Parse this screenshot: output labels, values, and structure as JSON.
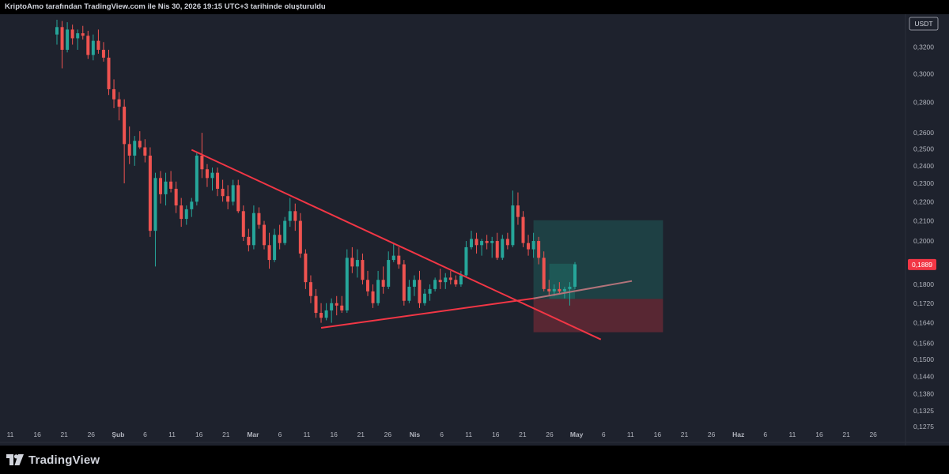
{
  "header": {
    "attribution": "KriptoAmo tarafından TradingView.com ile Nis 30, 2026 19:15 UTC+3 tarihinde oluşturuldu"
  },
  "branding": {
    "logo_text": "TradingView"
  },
  "colors": {
    "background": "#1e222d",
    "bull": "#26a69a",
    "bear": "#ef5350",
    "trendline": "#f23645",
    "current_price": "#f23645",
    "target_zone": "#22ab94",
    "stop_zone": "#f23645",
    "axis_text": "#b2b5be"
  },
  "chart_data": {
    "type": "candlestick",
    "symbol_currency": "USDT",
    "y_scale": "log",
    "ylim": [
      0.1275,
      0.344
    ],
    "y_ticks": [
      "0,3200",
      "0,3000",
      "0,2800",
      "0,2600",
      "0,2500",
      "0,2400",
      "0,2300",
      "0,2200",
      "0,2100",
      "0,2000",
      "0,1800",
      "0,1720",
      "0,1640",
      "0,1560",
      "0,1500",
      "0,1440",
      "0,1380",
      "0,1325",
      "0,1275"
    ],
    "current_price_label": "0,1889",
    "current_price": 0.1889,
    "x_ticks": [
      "11",
      "16",
      "21",
      "26",
      "Şub",
      "6",
      "11",
      "16",
      "21",
      "Mar",
      "6",
      "11",
      "16",
      "21",
      "26",
      "Nis",
      "6",
      "11",
      "16",
      "21",
      "26",
      "May",
      "6",
      "11",
      "16",
      "21",
      "26",
      "Haz",
      "6",
      "11",
      "16",
      "21",
      "26"
    ],
    "candles": [
      [
        0.33,
        0.342,
        0.322,
        0.336
      ],
      [
        0.336,
        0.341,
        0.304,
        0.318
      ],
      [
        0.318,
        0.34,
        0.316,
        0.334
      ],
      [
        0.334,
        0.338,
        0.322,
        0.327
      ],
      [
        0.327,
        0.334,
        0.318,
        0.331
      ],
      [
        0.331,
        0.337,
        0.326,
        0.329
      ],
      [
        0.329,
        0.333,
        0.311,
        0.314
      ],
      [
        0.314,
        0.33,
        0.31,
        0.325
      ],
      [
        0.325,
        0.334,
        0.315,
        0.318
      ],
      [
        0.318,
        0.324,
        0.309,
        0.312
      ],
      [
        0.312,
        0.318,
        0.285,
        0.289
      ],
      [
        0.289,
        0.296,
        0.276,
        0.282
      ],
      [
        0.282,
        0.287,
        0.268,
        0.277
      ],
      [
        0.277,
        0.282,
        0.23,
        0.253
      ],
      [
        0.253,
        0.264,
        0.241,
        0.246
      ],
      [
        0.246,
        0.258,
        0.24,
        0.255
      ],
      [
        0.255,
        0.261,
        0.25,
        0.251
      ],
      [
        0.251,
        0.256,
        0.242,
        0.246
      ],
      [
        0.246,
        0.251,
        0.202,
        0.205
      ],
      [
        0.205,
        0.236,
        0.188,
        0.233
      ],
      [
        0.233,
        0.237,
        0.219,
        0.224
      ],
      [
        0.224,
        0.236,
        0.218,
        0.231
      ],
      [
        0.231,
        0.237,
        0.225,
        0.227
      ],
      [
        0.227,
        0.231,
        0.214,
        0.218
      ],
      [
        0.218,
        0.222,
        0.207,
        0.211
      ],
      [
        0.211,
        0.218,
        0.208,
        0.216
      ],
      [
        0.216,
        0.222,
        0.212,
        0.22
      ],
      [
        0.22,
        0.248,
        0.218,
        0.246
      ],
      [
        0.246,
        0.26,
        0.233,
        0.238
      ],
      [
        0.238,
        0.241,
        0.228,
        0.233
      ],
      [
        0.233,
        0.239,
        0.226,
        0.236
      ],
      [
        0.236,
        0.239,
        0.223,
        0.227
      ],
      [
        0.227,
        0.232,
        0.22,
        0.223
      ],
      [
        0.223,
        0.229,
        0.216,
        0.22
      ],
      [
        0.22,
        0.232,
        0.218,
        0.229
      ],
      [
        0.229,
        0.232,
        0.214,
        0.215
      ],
      [
        0.215,
        0.218,
        0.2,
        0.202
      ],
      [
        0.202,
        0.206,
        0.195,
        0.198
      ],
      [
        0.198,
        0.218,
        0.196,
        0.214
      ],
      [
        0.214,
        0.217,
        0.206,
        0.208
      ],
      [
        0.208,
        0.21,
        0.196,
        0.198
      ],
      [
        0.198,
        0.204,
        0.187,
        0.191
      ],
      [
        0.191,
        0.206,
        0.19,
        0.203
      ],
      [
        0.203,
        0.208,
        0.196,
        0.199
      ],
      [
        0.199,
        0.212,
        0.198,
        0.21
      ],
      [
        0.21,
        0.222,
        0.207,
        0.215
      ],
      [
        0.215,
        0.219,
        0.205,
        0.21
      ],
      [
        0.21,
        0.214,
        0.192,
        0.194
      ],
      [
        0.194,
        0.196,
        0.178,
        0.181
      ],
      [
        0.181,
        0.184,
        0.172,
        0.175
      ],
      [
        0.175,
        0.178,
        0.166,
        0.168
      ],
      [
        0.168,
        0.172,
        0.164,
        0.166
      ],
      [
        0.166,
        0.172,
        0.165,
        0.169
      ],
      [
        0.169,
        0.174,
        0.164,
        0.172
      ],
      [
        0.172,
        0.175,
        0.167,
        0.171
      ],
      [
        0.171,
        0.175,
        0.168,
        0.169
      ],
      [
        0.169,
        0.196,
        0.168,
        0.192
      ],
      [
        0.192,
        0.197,
        0.185,
        0.188
      ],
      [
        0.188,
        0.196,
        0.183,
        0.191
      ],
      [
        0.191,
        0.194,
        0.18,
        0.182
      ],
      [
        0.182,
        0.186,
        0.175,
        0.177
      ],
      [
        0.177,
        0.18,
        0.17,
        0.172
      ],
      [
        0.172,
        0.186,
        0.171,
        0.182
      ],
      [
        0.182,
        0.188,
        0.176,
        0.179
      ],
      [
        0.179,
        0.195,
        0.178,
        0.191
      ],
      [
        0.191,
        0.199,
        0.19,
        0.193
      ],
      [
        0.193,
        0.197,
        0.187,
        0.189
      ],
      [
        0.189,
        0.191,
        0.171,
        0.173
      ],
      [
        0.173,
        0.182,
        0.172,
        0.179
      ],
      [
        0.179,
        0.184,
        0.175,
        0.182
      ],
      [
        0.182,
        0.186,
        0.17,
        0.172
      ],
      [
        0.172,
        0.178,
        0.171,
        0.176
      ],
      [
        0.176,
        0.18,
        0.173,
        0.178
      ],
      [
        0.178,
        0.183,
        0.177,
        0.182
      ],
      [
        0.182,
        0.187,
        0.178,
        0.181
      ],
      [
        0.181,
        0.185,
        0.178,
        0.183
      ],
      [
        0.183,
        0.186,
        0.18,
        0.182
      ],
      [
        0.182,
        0.184,
        0.179,
        0.18
      ],
      [
        0.18,
        0.186,
        0.179,
        0.184
      ],
      [
        0.184,
        0.2,
        0.183,
        0.197
      ],
      [
        0.197,
        0.205,
        0.196,
        0.201
      ],
      [
        0.201,
        0.204,
        0.194,
        0.198
      ],
      [
        0.198,
        0.201,
        0.193,
        0.2
      ],
      [
        0.2,
        0.203,
        0.196,
        0.199
      ],
      [
        0.199,
        0.202,
        0.192,
        0.2
      ],
      [
        0.2,
        0.204,
        0.191,
        0.192
      ],
      [
        0.192,
        0.203,
        0.191,
        0.201
      ],
      [
        0.201,
        0.204,
        0.196,
        0.198
      ],
      [
        0.198,
        0.226,
        0.197,
        0.218
      ],
      [
        0.218,
        0.225,
        0.208,
        0.212
      ],
      [
        0.212,
        0.215,
        0.197,
        0.199
      ],
      [
        0.199,
        0.203,
        0.193,
        0.196
      ],
      [
        0.196,
        0.204,
        0.192,
        0.2
      ],
      [
        0.2,
        0.202,
        0.189,
        0.192
      ],
      [
        0.192,
        0.195,
        0.177,
        0.178
      ],
      [
        0.178,
        0.182,
        0.175,
        0.177
      ],
      [
        0.177,
        0.18,
        0.175,
        0.178
      ],
      [
        0.178,
        0.181,
        0.176,
        0.177
      ],
      [
        0.177,
        0.179,
        0.174,
        0.178
      ],
      [
        0.178,
        0.181,
        0.171,
        0.179
      ],
      [
        0.179,
        0.19,
        0.178,
        0.189
      ]
    ],
    "drawings": {
      "descending_trendline": {
        "from": {
          "bar": 26,
          "price": 0.2495
        },
        "to": {
          "bar": 105,
          "price": 0.1575
        }
      },
      "ascending_trendline": {
        "from": {
          "bar": 51,
          "price": 0.162
        },
        "to": {
          "bar": 111,
          "price": 0.1815
        }
      },
      "position": {
        "entry": 0.1738,
        "target": 0.2103,
        "stop": 0.1603,
        "start_bar": 92,
        "end_bar": 117
      }
    }
  }
}
